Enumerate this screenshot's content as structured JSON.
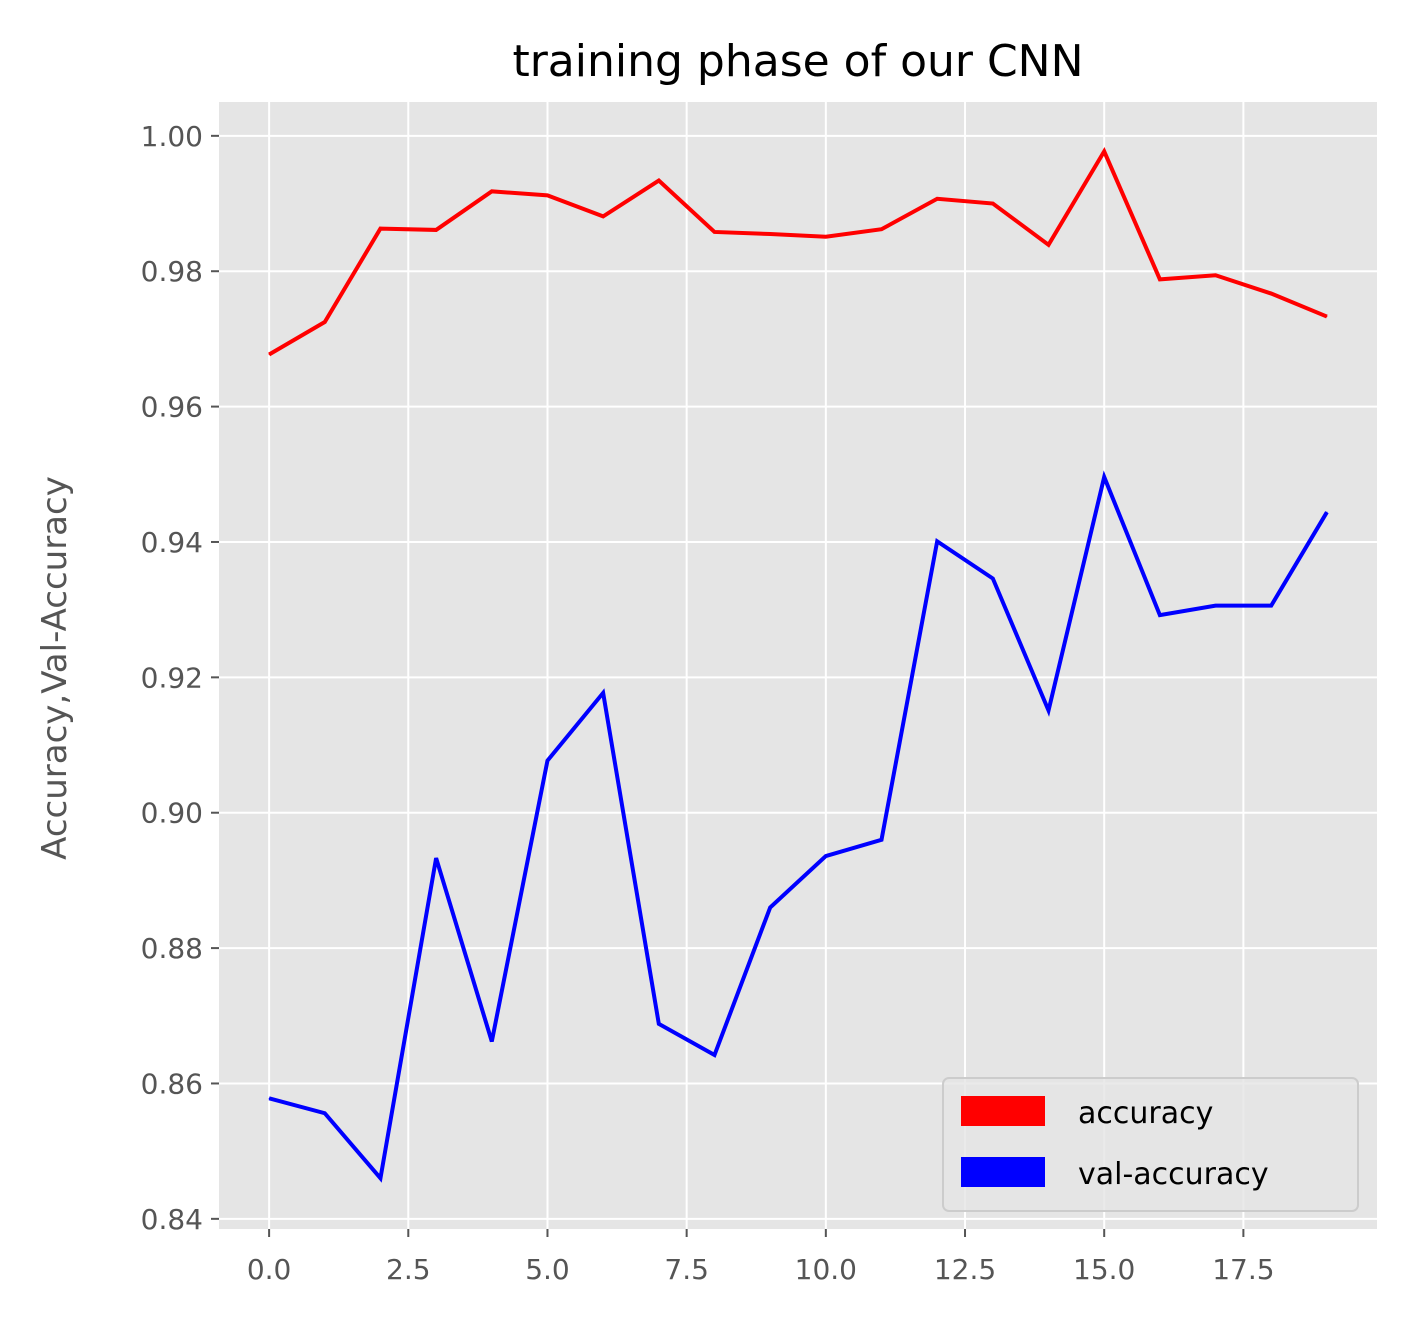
{
  "chart_data": {
    "type": "line",
    "title": "training phase of our CNN",
    "xlabel": "",
    "ylabel": "Accuracy,Val-Accuracy",
    "x": [
      0,
      1,
      2,
      3,
      4,
      5,
      6,
      7,
      8,
      9,
      10,
      11,
      12,
      13,
      14,
      15,
      16,
      17,
      18,
      19
    ],
    "xlim": [
      -0.9,
      19.9
    ],
    "ylim": [
      0.8385,
      1.005
    ],
    "xticks": [
      0,
      2.5,
      5,
      7.5,
      10,
      12.5,
      15,
      17.5
    ],
    "xtick_labels": [
      "0.0",
      "2.5",
      "5.0",
      "7.5",
      "10.0",
      "12.5",
      "15.0",
      "17.5"
    ],
    "yticks": [
      0.84,
      0.86,
      0.88,
      0.9,
      0.92,
      0.94,
      0.96,
      0.98,
      1.0
    ],
    "ytick_labels": [
      "0.84",
      "0.86",
      "0.88",
      "0.90",
      "0.92",
      "0.94",
      "0.96",
      "0.98",
      "1.00"
    ],
    "grid": true,
    "legend_position": "lower-right",
    "series": [
      {
        "name": "accuracy",
        "color": "#ff0000",
        "values": [
          0.9677,
          0.9725,
          0.9863,
          0.9861,
          0.9918,
          0.9912,
          0.9881,
          0.9934,
          0.9858,
          0.9855,
          0.9851,
          0.9862,
          0.9907,
          0.99,
          0.9839,
          0.9977,
          0.9788,
          0.9794,
          0.9767,
          0.9733
        ]
      },
      {
        "name": "val-accuracy",
        "color": "#0000ff",
        "values": [
          0.8578,
          0.8556,
          0.846,
          0.8933,
          0.8662,
          0.9077,
          0.9177,
          0.8688,
          0.8642,
          0.886,
          0.8936,
          0.896,
          0.9401,
          0.9346,
          0.9151,
          0.9496,
          0.9292,
          0.9306,
          0.9306,
          0.9444
        ]
      }
    ]
  }
}
